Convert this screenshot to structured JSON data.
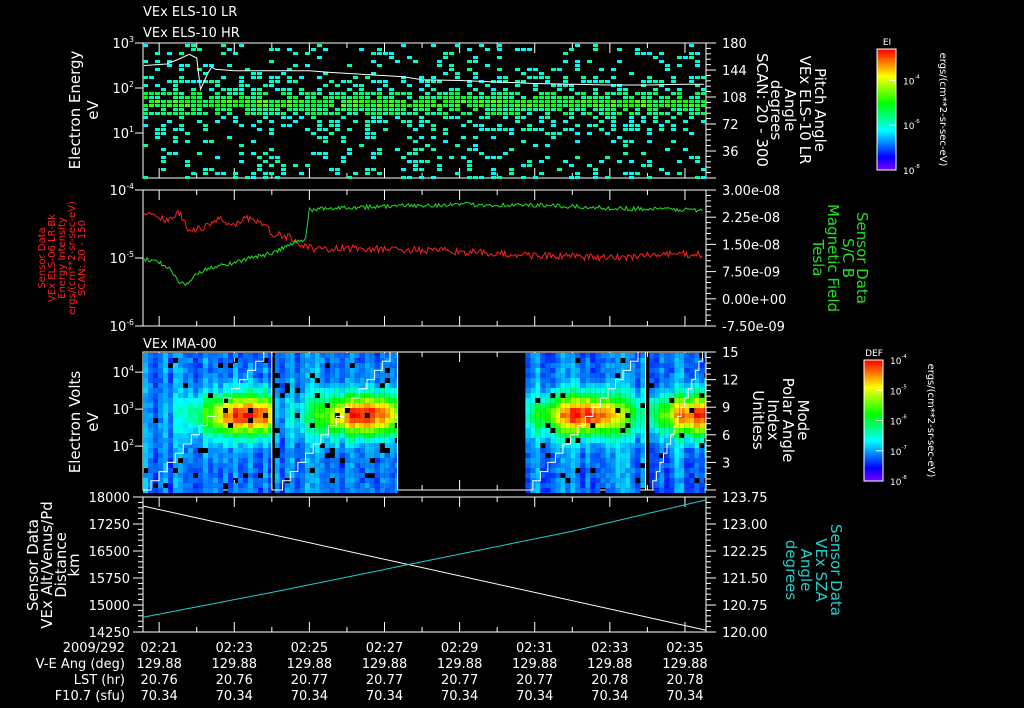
{
  "time_axis": {
    "unit": "minutes after 02:20 UT",
    "xlim": [
      0.57,
      15.56
    ],
    "row_labels": [
      "2009/292",
      "V-E Ang (deg)",
      "LST (hr)",
      "F10.7 (sfu)"
    ],
    "columns": [
      {
        "t": 1,
        "time": "02:21",
        "vea": "129.88",
        "lst": "20.76",
        "f107": "70.34"
      },
      {
        "t": 3,
        "time": "02:23",
        "vea": "129.88",
        "lst": "20.76",
        "f107": "70.34"
      },
      {
        "t": 5,
        "time": "02:25",
        "vea": "129.88",
        "lst": "20.77",
        "f107": "70.34"
      },
      {
        "t": 7,
        "time": "02:27",
        "vea": "129.88",
        "lst": "20.77",
        "f107": "70.34"
      },
      {
        "t": 9,
        "time": "02:29",
        "vea": "129.88",
        "lst": "20.77",
        "f107": "70.34"
      },
      {
        "t": 11,
        "time": "02:31",
        "vea": "129.88",
        "lst": "20.77",
        "f107": "70.34"
      },
      {
        "t": 13,
        "time": "02:33",
        "vea": "129.88",
        "lst": "20.78",
        "f107": "70.34"
      },
      {
        "t": 15,
        "time": "02:35",
        "vea": "129.88",
        "lst": "20.78",
        "f107": "70.34"
      }
    ]
  },
  "chart_data": [
    {
      "id": "els",
      "type": "heatmap",
      "titles": [
        "VEx ELS-10 LR",
        "VEx ELS-10 HR"
      ],
      "ylabel_left": [
        "Electron Energy",
        "eV"
      ],
      "ylim_left": [
        1,
        1000
      ],
      "yscale_left": "log",
      "yticks_left": [
        {
          "v": 1000,
          "base": "10",
          "exp": "3"
        },
        {
          "v": 100,
          "base": "10",
          "exp": "2"
        },
        {
          "v": 10,
          "base": "10",
          "exp": "1"
        }
      ],
      "ylabel_right": [
        "Pitch Angle",
        "VEx ELS-10 LR",
        "Angle",
        "degrees",
        "SCAN: 20 - 300"
      ],
      "ylim_right": [
        0,
        180
      ],
      "yticks_right": [
        "180",
        "144",
        "108",
        "72",
        "36"
      ],
      "band_center_eV": 50,
      "line_color": "#ffffff",
      "pitch_angle_series": [
        [
          0.6,
          150
        ],
        [
          1.2,
          152
        ],
        [
          1.5,
          158
        ],
        [
          1.8,
          165
        ],
        [
          2.0,
          160
        ],
        [
          2.1,
          118
        ],
        [
          2.3,
          140
        ],
        [
          2.4,
          148
        ],
        [
          2.5,
          145
        ],
        [
          3,
          143
        ],
        [
          4,
          143
        ],
        [
          5,
          143
        ],
        [
          5.5,
          141
        ],
        [
          6.5,
          138
        ],
        [
          7.5,
          135
        ],
        [
          8,
          131
        ],
        [
          9,
          130
        ],
        [
          10,
          128
        ],
        [
          11,
          126
        ],
        [
          12,
          125
        ],
        [
          13,
          124
        ],
        [
          14,
          124
        ],
        [
          15,
          125
        ],
        [
          15.5,
          125
        ]
      ],
      "colorbar": {
        "title": "EI",
        "unit": "ergs/(cm**2-sr-sec-eV)",
        "zlim_log10": [
          -8,
          -2.6
        ],
        "ticks": [
          {
            "v": -4,
            "base": "10",
            "exp": "-4"
          },
          {
            "v": -6,
            "base": "10",
            "exp": "-6"
          },
          {
            "v": -8,
            "base": "10",
            "exp": "-8"
          }
        ]
      }
    },
    {
      "id": "mag",
      "type": "line",
      "ylabel_left": [
        "Sensor Data",
        "VEx ELS-06 LR-Bk",
        "Energy Intensity",
        "ergs/(cm**2-sr-sec-eV)",
        "SCAN: 20 - 150"
      ],
      "ylim_left": [
        1e-06,
        0.0001
      ],
      "yscale_left": "log",
      "yticks_left": [
        {
          "v": 0.0001,
          "base": "10",
          "exp": "-4"
        },
        {
          "v": 1e-05,
          "base": "10",
          "exp": "-5"
        },
        {
          "v": 1e-06,
          "base": "10",
          "exp": "-6"
        }
      ],
      "ylabel_right": [
        "Sensor Data",
        "S/C B",
        "Magnetic Field",
        "Tesla"
      ],
      "ylim_right": [
        -7.5e-09,
        3e-08
      ],
      "yticks_right": [
        {
          "v": 3e-08,
          "label": "3.00e-08"
        },
        {
          "v": 2.25e-08,
          "label": "2.25e-08"
        },
        {
          "v": 1.5e-08,
          "label": "1.50e-08"
        },
        {
          "v": 7.5e-09,
          "label": "7.50e-09"
        },
        {
          "v": 0,
          "label": "0.00e+00"
        },
        {
          "v": -7.5e-09,
          "label": "-7.50e-09"
        }
      ],
      "left_color": "#ff2020",
      "right_color": "#20e020",
      "series": [
        {
          "name": "Energy Intensity",
          "axis": "left",
          "points": [
            [
              0.6,
              4.5e-05
            ],
            [
              1.2,
              3.5e-05
            ],
            [
              1.5,
              4.8e-05
            ],
            [
              1.8,
              2.5e-05
            ],
            [
              2.2,
              2.8e-05
            ],
            [
              2.6,
              3.8e-05
            ],
            [
              3.0,
              3e-05
            ],
            [
              3.3,
              4e-05
            ],
            [
              3.7,
              3.3e-05
            ],
            [
              4.0,
              2.3e-05
            ],
            [
              4.5,
              2e-05
            ],
            [
              4.8,
              1.6e-05
            ],
            [
              5.2,
              1.3e-05
            ],
            [
              6,
              1.4e-05
            ],
            [
              7,
              1.35e-05
            ],
            [
              8,
              1.3e-05
            ],
            [
              9,
              1.25e-05
            ],
            [
              10,
              1.15e-05
            ],
            [
              11,
              1.1e-05
            ],
            [
              12,
              1.05e-05
            ],
            [
              13,
              1e-05
            ],
            [
              14,
              1.1e-05
            ],
            [
              15,
              1.15e-05
            ],
            [
              15.5,
              1.1e-05
            ]
          ]
        },
        {
          "name": "Magnetic Field",
          "axis": "right",
          "points": [
            [
              0.6,
              1.1e-08
            ],
            [
              1.0,
              1e-08
            ],
            [
              1.3,
              8e-09
            ],
            [
              1.5,
              5e-09
            ],
            [
              1.7,
              3.5e-09
            ],
            [
              2.0,
              7e-09
            ],
            [
              2.5,
              9e-09
            ],
            [
              3.0,
              1e-08
            ],
            [
              3.5,
              1.15e-08
            ],
            [
              4.0,
              1.25e-08
            ],
            [
              4.5,
              1.5e-08
            ],
            [
              4.9,
              1.65e-08
            ],
            [
              5.0,
              2.45e-08
            ],
            [
              5.5,
              2.5e-08
            ],
            [
              7,
              2.55e-08
            ],
            [
              9,
              2.6e-08
            ],
            [
              11,
              2.58e-08
            ],
            [
              13,
              2.5e-08
            ],
            [
              15.5,
              2.45e-08
            ]
          ]
        }
      ]
    },
    {
      "id": "ima",
      "type": "heatmap",
      "titles": [
        "VEx IMA-00"
      ],
      "ylabel_left": [
        "Electron Volts",
        "eV"
      ],
      "ylim_left": [
        6.5,
        35000
      ],
      "yscale_left": "log",
      "yticks_left": [
        {
          "v": 10000,
          "base": "10",
          "exp": "4"
        },
        {
          "v": 1000,
          "base": "10",
          "exp": "3"
        },
        {
          "v": 100,
          "base": "10",
          "exp": "2"
        }
      ],
      "ylabel_right": [
        "Mode",
        "Polar Angle",
        "Index",
        "Unitless"
      ],
      "ylim_right": [
        0,
        15
      ],
      "yticks_right": [
        "15",
        "12",
        "9",
        "6",
        "3"
      ],
      "scan_segments": [
        [
          0.57,
          4.0
        ],
        [
          4.08,
          7.35
        ],
        [
          10.75,
          13.95
        ],
        [
          14.05,
          15.56
        ]
      ],
      "peak_energy_eV": 800,
      "peak_times": [
        3.3,
        6.4,
        12.3,
        15.4
      ],
      "colorbar": {
        "title": "DEF",
        "unit": "ergs/(cm**2-sr-sec-eV)",
        "zlim_log10": [
          -8,
          -4
        ],
        "ticks": [
          {
            "v": -4,
            "base": "10",
            "exp": "-4"
          },
          {
            "v": -5,
            "base": "10",
            "exp": "-5"
          },
          {
            "v": -6,
            "base": "10",
            "exp": "-6"
          },
          {
            "v": -7,
            "base": "10",
            "exp": "-7"
          },
          {
            "v": -8,
            "base": "10",
            "exp": "-8"
          }
        ]
      }
    },
    {
      "id": "orbit",
      "type": "line",
      "ylabel_left": [
        "Sensor Data",
        "VEx Alt/Venus/Pd",
        "Distance",
        "km"
      ],
      "ylim_left": [
        14250,
        18000
      ],
      "yticks_left": [
        "18000",
        "17250",
        "16500",
        "15750",
        "15000",
        "14250"
      ],
      "ylabel_right": [
        "Sensor Data",
        "VEx SZA",
        "Angle",
        "degrees"
      ],
      "ylim_right": [
        120.0,
        123.75
      ],
      "yticks_right": [
        "123.75",
        "123.00",
        "122.25",
        "121.50",
        "120.75",
        "120.00"
      ],
      "left_color": "#ffffff",
      "right_color": "#20d0d0",
      "series": [
        {
          "name": "Altitude",
          "axis": "left",
          "points": [
            [
              0.57,
              17750
            ],
            [
              15.56,
              14300
            ]
          ]
        },
        {
          "name": "SZA",
          "axis": "right",
          "points": [
            [
              0.57,
              120.41
            ],
            [
              4,
              121.1
            ],
            [
              8,
              121.95
            ],
            [
              12,
              122.8
            ],
            [
              15.56,
              123.67
            ]
          ]
        }
      ]
    }
  ]
}
